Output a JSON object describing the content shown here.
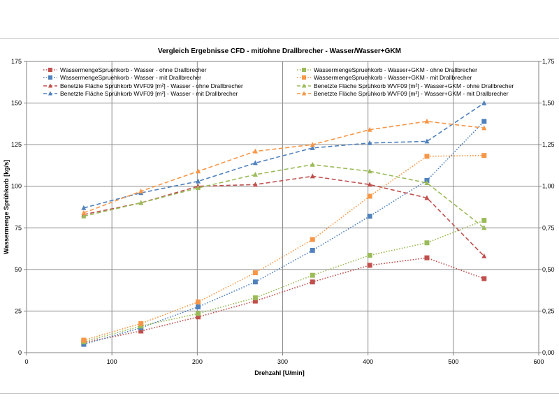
{
  "chart_data": {
    "type": "line",
    "title": "Vergleich Ergebnisse CFD - mit/ohne Drallbrecher - Wasser/Wasser+GKM",
    "xlabel": "Drehzahl [U/min]",
    "ylabel": "Wassermenge Sprühkorb [kg/s]",
    "xlim": [
      0,
      600
    ],
    "ylim": [
      0,
      175
    ],
    "y2lim": [
      0,
      1.75
    ],
    "grid": true,
    "legend": "top",
    "x_ticks": [
      "0",
      "100",
      "200",
      "300",
      "400",
      "500",
      "600"
    ],
    "y_ticks": [
      "0",
      "25",
      "50",
      "75",
      "100",
      "125",
      "150",
      "175"
    ],
    "y2_ticks": [
      "0,00",
      "0,25",
      "0,50",
      "0,75",
      "1,00",
      "1,25",
      "1,50",
      "1,75"
    ],
    "x": [
      67,
      134,
      201,
      268,
      335,
      402,
      469,
      536
    ],
    "series": [
      {
        "name": "WassermengeSpruehkorb - Wasser - ohne Drallbrecher",
        "axis": "left",
        "marker": "square",
        "dash": "dot",
        "color": "#c0504d",
        "values": [
          6,
          13,
          21.5,
          31,
          42.5,
          52.5,
          57,
          44.5
        ]
      },
      {
        "name": "WassermengeSpruehkorb - Wasser - mit Drallbrecher",
        "axis": "left",
        "marker": "square",
        "dash": "dot",
        "color": "#4f81bd",
        "values": [
          5,
          15,
          27.5,
          42.5,
          61.5,
          82,
          103.5,
          139
        ]
      },
      {
        "name": "Benetzte Fläche Sprühkorb WVF09 [m²] - Wasser - ohne Drallbrecher",
        "axis": "right",
        "marker": "triangle",
        "dash": "dash",
        "color": "#c0504d",
        "values": [
          0.83,
          0.9,
          1.0,
          1.01,
          1.06,
          1.01,
          0.93,
          0.58
        ]
      },
      {
        "name": "Benetzte Fläche Sprühkorb WVF09 [m²] - Wasser - mit Drallbrecher",
        "axis": "right",
        "marker": "triangle",
        "dash": "dash",
        "color": "#4f81bd",
        "values": [
          0.87,
          0.96,
          1.03,
          1.14,
          1.23,
          1.26,
          1.27,
          1.5
        ]
      },
      {
        "name": "WassermengeSpruehkorb - Wasser+GKM - ohne Drallbrecher",
        "axis": "left",
        "marker": "square",
        "dash": "dot",
        "color": "#9bbb59",
        "values": [
          6.5,
          16,
          23.5,
          33,
          46.5,
          58.5,
          66,
          79.5
        ]
      },
      {
        "name": "WassermengeSpruehkorb - Wasser+GKM - mit Drallbrecher",
        "axis": "left",
        "marker": "square",
        "dash": "dot",
        "color": "#f79646",
        "values": [
          7.5,
          17.5,
          30.5,
          48,
          68,
          94,
          118,
          118.5
        ]
      },
      {
        "name": "Benetzte Fläche Sprühkorb WVF09 [m²] - Wasser+GKM - ohne Drallbrecher",
        "axis": "right",
        "marker": "triangle",
        "dash": "dash",
        "color": "#9bbb59",
        "values": [
          0.82,
          0.9,
          0.99,
          1.07,
          1.13,
          1.09,
          1.02,
          0.75
        ]
      },
      {
        "name": "Benetzte Fläche Sprühkorb WVF09 [m²] - Wasser+GKM - mit Drallbrecher",
        "axis": "right",
        "marker": "triangle",
        "dash": "dash",
        "color": "#f79646",
        "values": [
          0.84,
          0.97,
          1.09,
          1.21,
          1.25,
          1.34,
          1.39,
          1.35
        ]
      }
    ]
  }
}
